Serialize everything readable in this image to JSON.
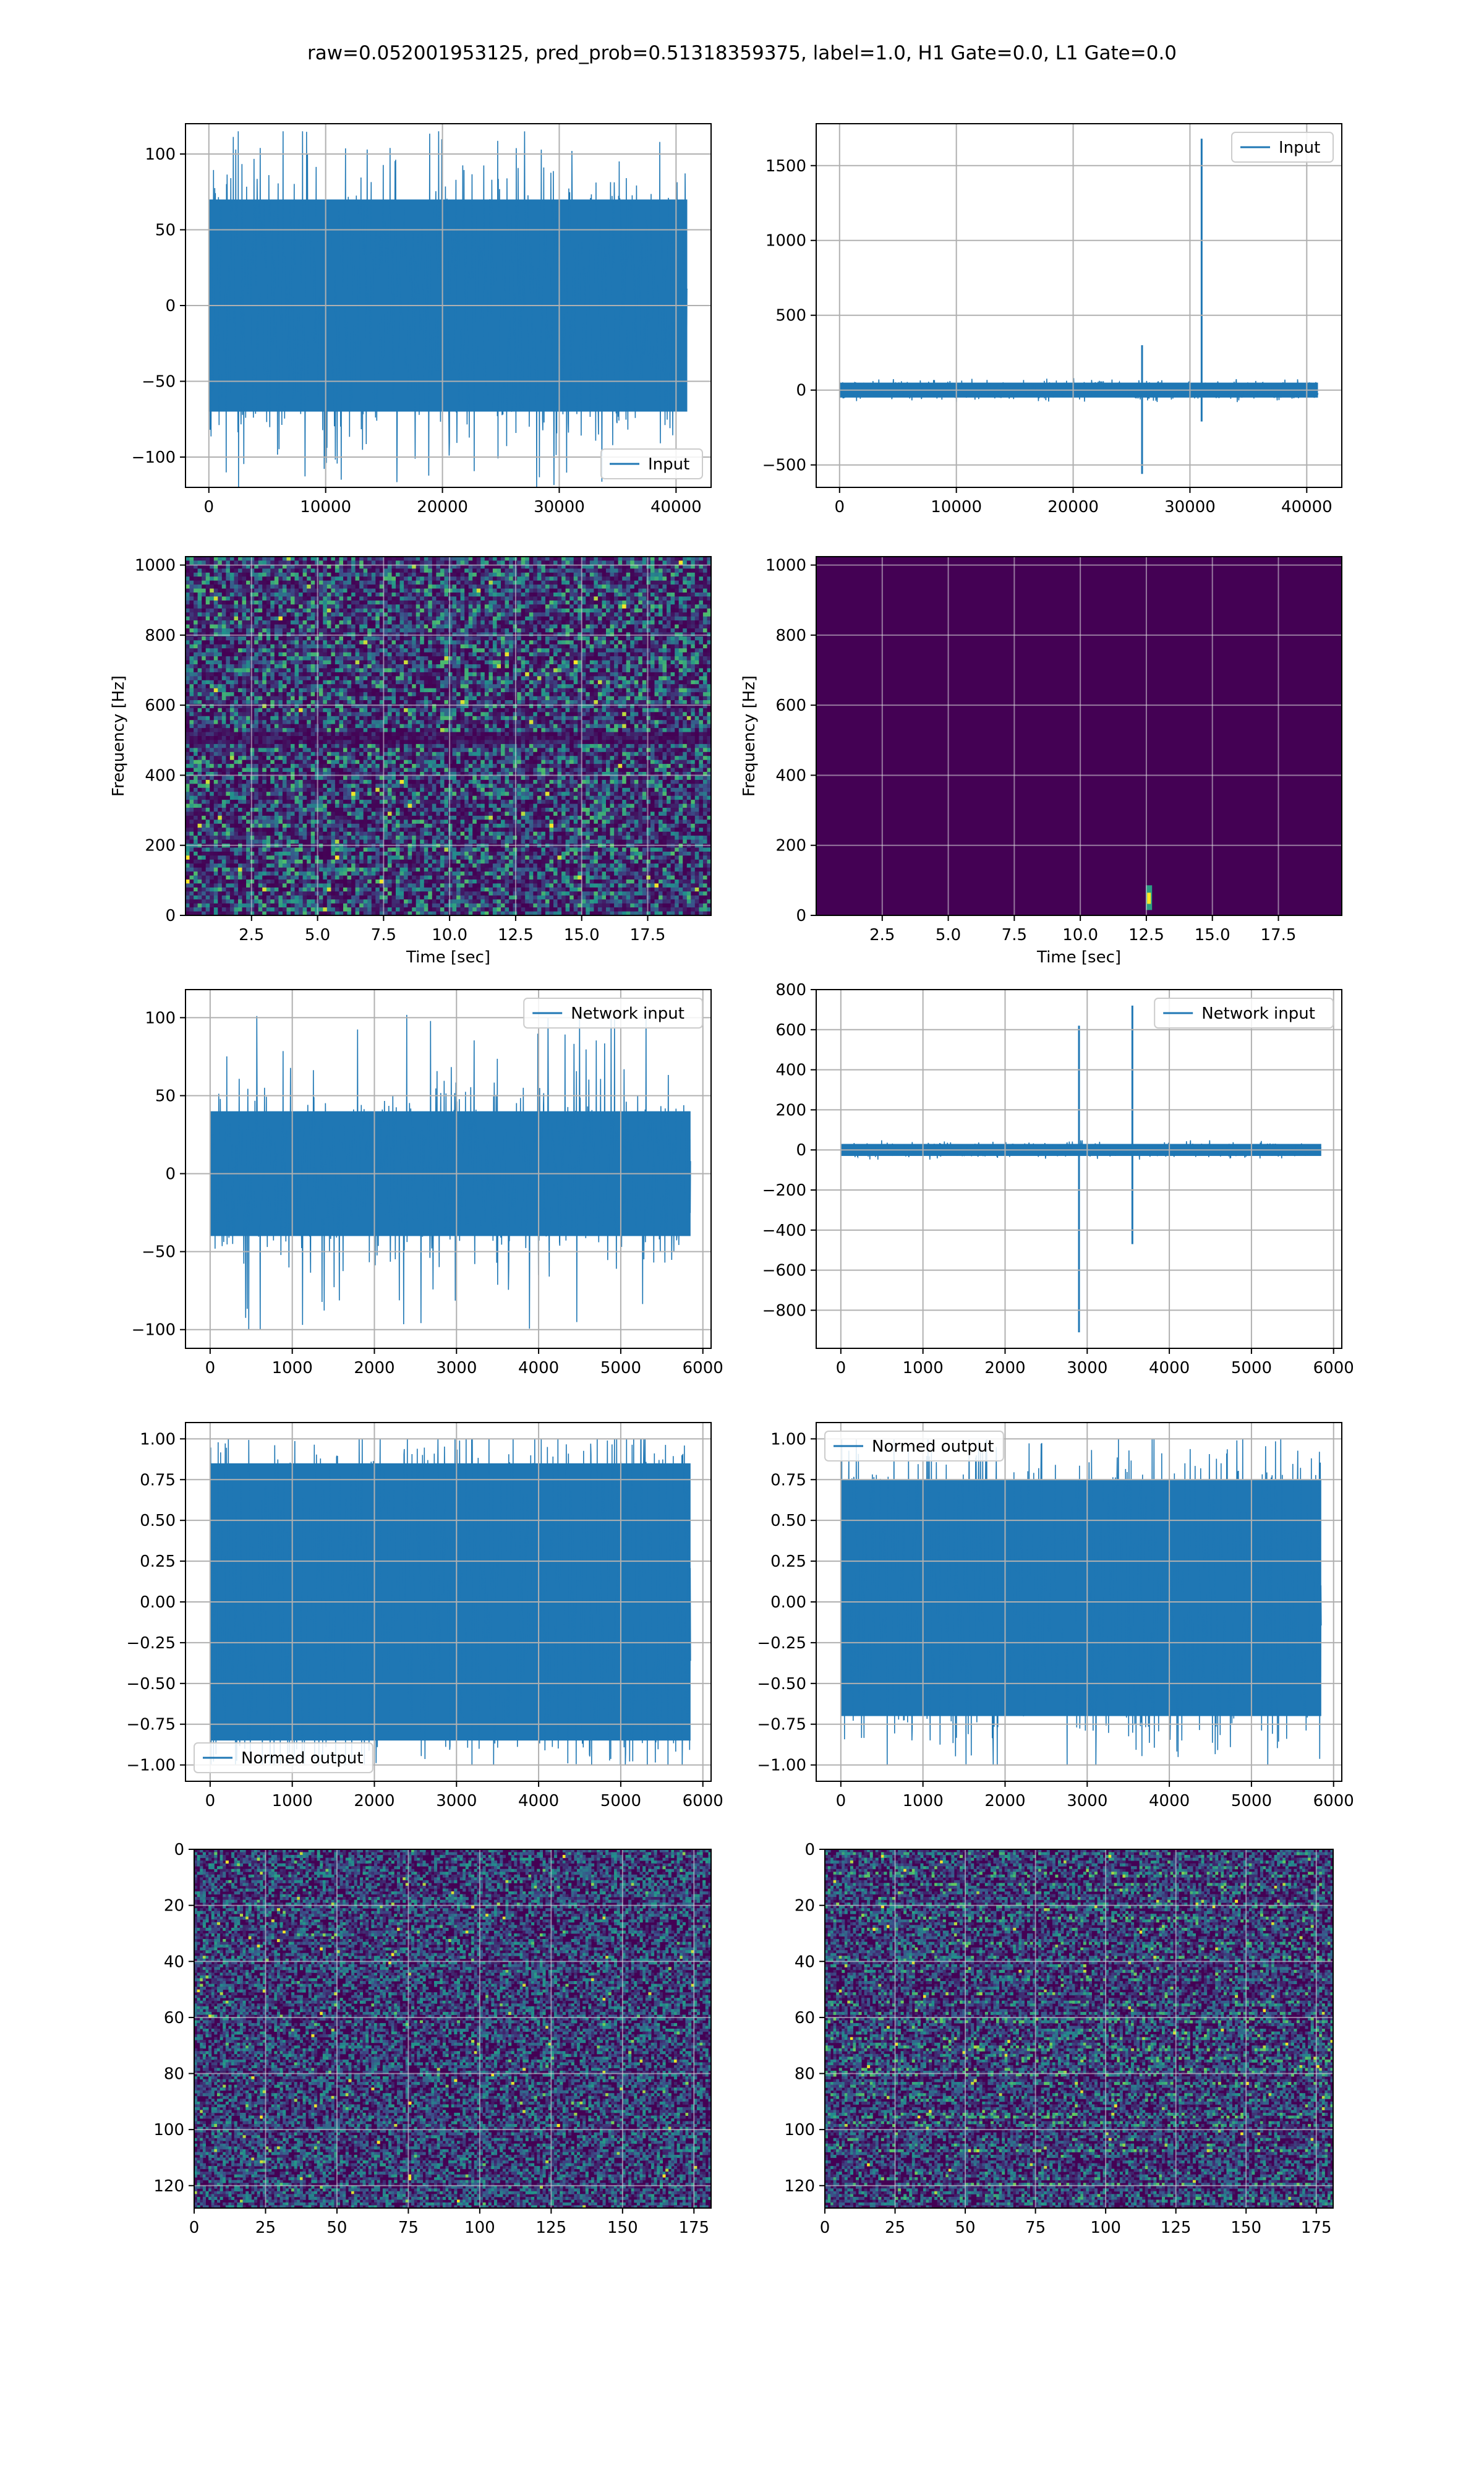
{
  "figure": {
    "suptitle": "raw=0.052001953125, pred_prob=0.51318359375, label=1.0, H1 Gate=0.0, L1 Gate=0.0",
    "colors": {
      "line": "#1f77b4",
      "grid": "#b0b0b0",
      "viridis_low": "#440154",
      "viridis_mid": "#21918c",
      "viridis_high": "#fde725"
    }
  },
  "chart_data": [
    {
      "id": "h1-input",
      "type": "line",
      "xlim": [
        -2000,
        43000
      ],
      "ylim": [
        -120,
        120
      ],
      "xticks": [
        0,
        10000,
        20000,
        30000,
        40000
      ],
      "yticks": [
        -100,
        -50,
        0,
        50,
        100
      ],
      "grid": true,
      "legend": "lower right",
      "legend_position": "lower right",
      "series": [
        {
          "name": "Input",
          "x_range": [
            0,
            40960
          ],
          "band": [
            -70,
            70
          ],
          "extremes": [
            -120,
            115
          ]
        }
      ]
    },
    {
      "id": "l1-input",
      "type": "line",
      "xlim": [
        -2000,
        43000
      ],
      "ylim": [
        -650,
        1780
      ],
      "xticks": [
        0,
        10000,
        20000,
        30000,
        40000
      ],
      "yticks": [
        -500,
        0,
        500,
        1000,
        1500
      ],
      "grid": true,
      "legend": "upper right",
      "legend_position": "upper right",
      "series": [
        {
          "name": "Input",
          "x_range": [
            0,
            40960
          ],
          "band": [
            -50,
            50
          ],
          "spikes": [
            [
              25900,
              300,
              -560
            ],
            [
              31000,
              1680,
              -210
            ]
          ]
        }
      ]
    },
    {
      "id": "h1-spectrogram",
      "type": "heatmap",
      "xlim": [
        0,
        19.9
      ],
      "ylim": [
        0,
        1024
      ],
      "xticks": [
        2.5,
        5.0,
        7.5,
        10.0,
        12.5,
        15.0,
        17.5
      ],
      "yticks": [
        0,
        200,
        400,
        600,
        800,
        1000
      ],
      "xlabel": "Time [sec]",
      "ylabel": "Frequency [Hz]",
      "grid": true,
      "colormap": "viridis"
    },
    {
      "id": "l1-spectrogram",
      "type": "heatmap",
      "xlim": [
        0,
        19.9
      ],
      "ylim": [
        0,
        1024
      ],
      "xticks": [
        2.5,
        5.0,
        7.5,
        10.0,
        12.5,
        15.0,
        17.5
      ],
      "yticks": [
        0,
        200,
        400,
        600,
        800,
        1000
      ],
      "xlabel": "Time [sec]",
      "ylabel": "Frequency [Hz]",
      "grid": true,
      "colormap": "viridis",
      "hotspot": {
        "time": 12.6,
        "frequency": 40
      }
    },
    {
      "id": "h1-network-input",
      "type": "line",
      "xlim": [
        -300,
        6100
      ],
      "ylim": [
        -112,
        118
      ],
      "xticks": [
        0,
        1000,
        2000,
        3000,
        4000,
        5000,
        6000
      ],
      "yticks": [
        -100,
        -50,
        0,
        50,
        100
      ],
      "grid": true,
      "legend": "upper right",
      "legend_position": "upper right",
      "series": [
        {
          "name": "Network input",
          "x_range": [
            0,
            5850
          ],
          "band": [
            -40,
            40
          ],
          "extremes": [
            -100,
            107
          ]
        }
      ]
    },
    {
      "id": "l1-network-input",
      "type": "line",
      "xlim": [
        -300,
        6100
      ],
      "ylim": [
        -990,
        800
      ],
      "xticks": [
        0,
        1000,
        2000,
        3000,
        4000,
        5000,
        6000
      ],
      "yticks": [
        -800,
        -600,
        -400,
        -200,
        0,
        200,
        400,
        600,
        800
      ],
      "grid": true,
      "legend": "upper right",
      "legend_position": "upper right",
      "series": [
        {
          "name": "Network input",
          "x_range": [
            0,
            5850
          ],
          "band": [
            -30,
            30
          ],
          "spikes": [
            [
              2900,
              620,
              -910
            ],
            [
              3550,
              720,
              -470
            ]
          ]
        }
      ]
    },
    {
      "id": "h1-normed-output",
      "type": "line",
      "xlim": [
        -300,
        6100
      ],
      "ylim": [
        -1.1,
        1.1
      ],
      "xticks": [
        0,
        1000,
        2000,
        3000,
        4000,
        5000,
        6000
      ],
      "yticks": [
        -1.0,
        -0.75,
        -0.5,
        -0.25,
        0.0,
        0.25,
        0.5,
        0.75,
        1.0
      ],
      "grid": true,
      "legend": "lower left",
      "legend_position": "lower left",
      "series": [
        {
          "name": "Normed output",
          "x_range": [
            0,
            5850
          ],
          "band": [
            -0.85,
            0.85
          ],
          "extremes": [
            -1.0,
            1.0
          ]
        }
      ]
    },
    {
      "id": "l1-normed-output",
      "type": "line",
      "xlim": [
        -300,
        6100
      ],
      "ylim": [
        -1.1,
        1.1
      ],
      "xticks": [
        0,
        1000,
        2000,
        3000,
        4000,
        5000,
        6000
      ],
      "yticks": [
        -1.0,
        -0.75,
        -0.5,
        -0.25,
        0.0,
        0.25,
        0.5,
        0.75,
        1.0
      ],
      "grid": true,
      "legend": "upper left",
      "legend_position": "upper left",
      "series": [
        {
          "name": "Normed output",
          "x_range": [
            0,
            5850
          ],
          "band": [
            -0.7,
            0.75
          ],
          "extremes": [
            -1.0,
            1.0
          ]
        }
      ]
    },
    {
      "id": "h1-feature-map",
      "type": "heatmap",
      "xlim": [
        0,
        181
      ],
      "ylim": [
        128,
        0
      ],
      "xticks": [
        0,
        25,
        50,
        75,
        100,
        125,
        150,
        175
      ],
      "yticks": [
        0,
        20,
        40,
        60,
        80,
        100,
        120
      ],
      "grid": true,
      "colormap": "viridis",
      "rows": 128,
      "cols": 181
    },
    {
      "id": "l1-feature-map",
      "type": "heatmap",
      "xlim": [
        0,
        181
      ],
      "ylim": [
        128,
        0
      ],
      "xticks": [
        0,
        25,
        50,
        75,
        100,
        125,
        150,
        175
      ],
      "yticks": [
        0,
        20,
        40,
        60,
        80,
        100,
        120
      ],
      "grid": true,
      "colormap": "viridis",
      "rows": 128,
      "cols": 181
    }
  ]
}
